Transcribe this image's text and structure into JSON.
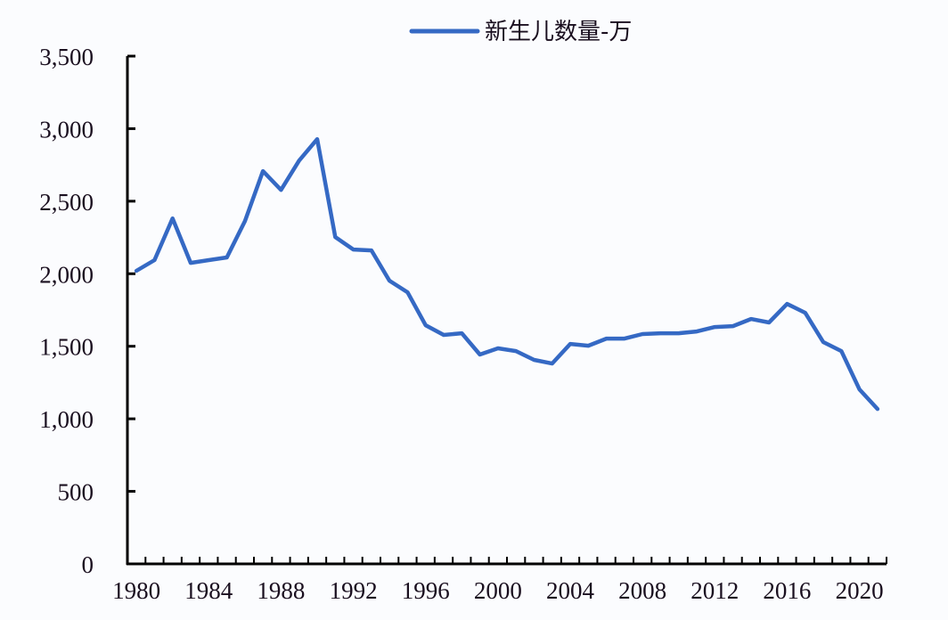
{
  "legend": {
    "label": "新生儿数量-万",
    "color": "#3569c4"
  },
  "y_axis": {
    "ticks": [
      "0",
      "500",
      "1,000",
      "1,500",
      "2,000",
      "2,500",
      "3,000",
      "3,500"
    ]
  },
  "x_axis": {
    "ticks": [
      "1980",
      "1984",
      "1988",
      "1992",
      "1996",
      "2000",
      "2004",
      "2008",
      "2012",
      "2016",
      "2020"
    ]
  },
  "chart_data": {
    "type": "line",
    "title": "",
    "xlabel": "",
    "ylabel": "",
    "ylim": [
      0,
      3500
    ],
    "grid": false,
    "legend_position": "top",
    "x": [
      1980,
      1981,
      1982,
      1983,
      1984,
      1985,
      1986,
      1987,
      1988,
      1989,
      1990,
      1991,
      1992,
      1993,
      1994,
      1995,
      1996,
      1997,
      1998,
      1999,
      2000,
      2001,
      2002,
      2003,
      2004,
      2005,
      2006,
      2007,
      2008,
      2009,
      2010,
      2011,
      2012,
      2013,
      2014,
      2015,
      2016,
      2017,
      2018,
      2019,
      2020,
      2021
    ],
    "series": [
      {
        "name": "新生儿数量-万",
        "values": [
          2020,
          2094,
          2381,
          2075,
          2094,
          2112,
          2363,
          2707,
          2578,
          2780,
          2928,
          2253,
          2167,
          2161,
          1952,
          1872,
          1645,
          1578,
          1590,
          1443,
          1486,
          1467,
          1406,
          1381,
          1516,
          1504,
          1553,
          1553,
          1584,
          1590,
          1590,
          1602,
          1633,
          1639,
          1688,
          1664,
          1792,
          1731,
          1529,
          1467,
          1203,
          1068
        ]
      }
    ]
  }
}
